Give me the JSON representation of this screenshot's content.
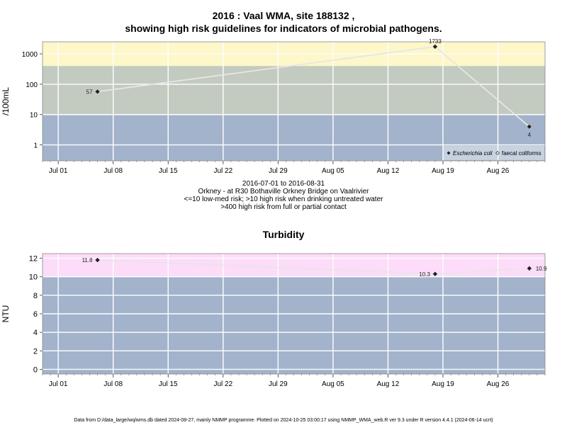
{
  "chart_data": [
    {
      "type": "line",
      "title_line1": "2016 : Vaal WMA, site 188132 ,",
      "title_line2": "showing high risk guidelines for indicators of microbial pathogens.",
      "ylabel": "/100mL",
      "yscale": "log",
      "ylim": [
        0.3,
        2500
      ],
      "yticks": [
        {
          "value": 1,
          "label": "1"
        },
        {
          "value": 10,
          "label": "10"
        },
        {
          "value": 100,
          "label": "100"
        },
        {
          "value": 1000,
          "label": "1000"
        }
      ],
      "xticks": [
        "2016-07-01",
        "2016-07-08",
        "2016-07-15",
        "2016-07-22",
        "2016-07-29",
        "2016-08-05",
        "2016-08-12",
        "2016-08-19",
        "2016-08-26"
      ],
      "xtick_labels": [
        "Jul 01",
        "Jul 08",
        "Jul 15",
        "Jul 22",
        "Jul 29",
        "Aug 05",
        "Aug 12",
        "Aug 19",
        "Aug 26"
      ],
      "xlim": [
        "2016-06-29",
        "2016-09-01"
      ],
      "bands": [
        {
          "from": 0.3,
          "to": 10,
          "color": "#a2b3cb"
        },
        {
          "from": 10,
          "to": 400,
          "color": "#c3cbc0"
        },
        {
          "from": 400,
          "to": 2500,
          "color": "#fdf7c9"
        }
      ],
      "series": [
        {
          "name": "Escherichia coli",
          "x": [
            "2016-07-06",
            "2016-08-18",
            "2016-08-30"
          ],
          "values": [
            57,
            1733,
            4
          ],
          "labels": [
            "57",
            "1733",
            "4"
          ],
          "marker": "filled-diamond"
        }
      ],
      "legend": {
        "position": "bottom-right",
        "entries": [
          "Escherichia coli",
          "faecal coliforms"
        ]
      },
      "caption_lines": [
        "2016-07-01 to 2016-08-31",
        "Orkney - at R30 Bothaville Orkney Bridge on Vaalrivier",
        "<=10 low-med risk; >10 high risk when drinking untreated water",
        ">400 high risk from full or partial contact"
      ],
      "grid": true
    },
    {
      "type": "line",
      "title": "Turbidity",
      "ylabel": "NTU",
      "ylim": [
        -0.5,
        12.5
      ],
      "yticks": [
        {
          "value": 0,
          "label": "0"
        },
        {
          "value": 2,
          "label": "2"
        },
        {
          "value": 4,
          "label": "4"
        },
        {
          "value": 6,
          "label": "6"
        },
        {
          "value": 8,
          "label": "8"
        },
        {
          "value": 10,
          "label": "10"
        },
        {
          "value": 12,
          "label": "12"
        }
      ],
      "xticks": [
        "2016-07-01",
        "2016-07-08",
        "2016-07-15",
        "2016-07-22",
        "2016-07-29",
        "2016-08-05",
        "2016-08-12",
        "2016-08-19",
        "2016-08-26"
      ],
      "xtick_labels": [
        "Jul 01",
        "Jul 08",
        "Jul 15",
        "Jul 22",
        "Jul 29",
        "Aug 05",
        "Aug 12",
        "Aug 19",
        "Aug 26"
      ],
      "xlim": [
        "2016-06-29",
        "2016-09-01"
      ],
      "bands": [
        {
          "from": -0.5,
          "to": 10,
          "color": "#a2b3cb"
        },
        {
          "from": 10,
          "to": 12.5,
          "color": "#fcdcf9"
        }
      ],
      "series": [
        {
          "x": [
            "2016-07-06",
            "2016-08-18",
            "2016-08-30"
          ],
          "values": [
            11.8,
            10.3,
            10.9
          ],
          "labels": [
            "11.8",
            "10.3",
            "10.9"
          ],
          "marker": "filled-diamond"
        }
      ],
      "grid": true
    }
  ],
  "footer": "Data from D:/data_large/wq/wms.db dated 2024-08-27, mainly NMMP programme. Plotted on 2024-10-25 03:00:17 using NMMP_WMA_web.R ver 9.3 under R version 4.4.1 (2024-06-14 ucrt)",
  "colors": {
    "line": "#e6e6e6",
    "marker": "#222222",
    "grid": "#ffffff",
    "frame": "#888888"
  }
}
